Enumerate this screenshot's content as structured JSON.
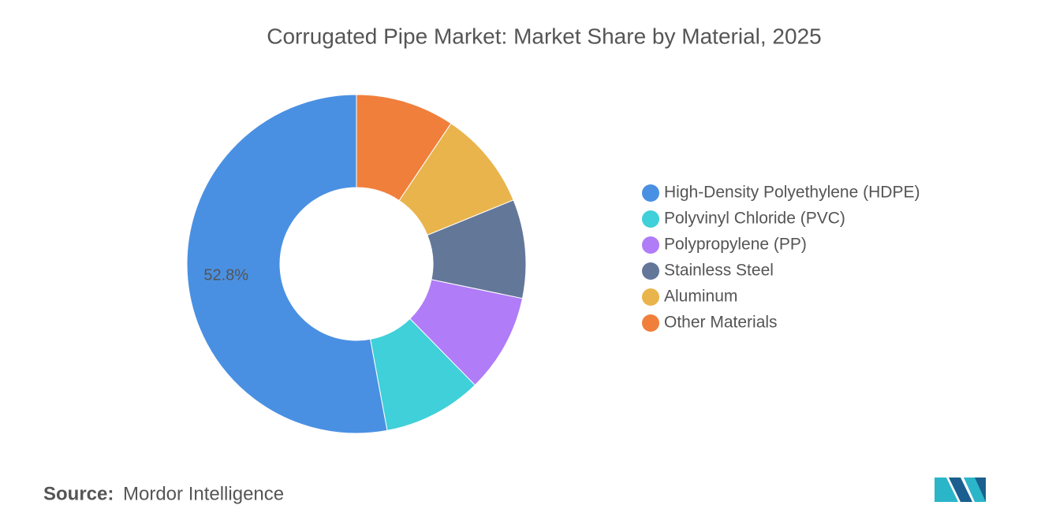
{
  "chart_data": {
    "type": "donut",
    "title": "Corrugated Pipe Market: Market Share by Material, 2025",
    "categories": [
      "High-Density Polyethylene (HDPE)",
      "Polyvinyl Chloride (PVC)",
      "Polypropylene (PP)",
      "Stainless Steel",
      "Aluminum",
      "Other Materials"
    ],
    "values": [
      52.8,
      9.4,
      9.4,
      9.4,
      9.4,
      9.4
    ],
    "value_labels": [
      "52.8%",
      null,
      null,
      null,
      null,
      null
    ],
    "colors": [
      "#4a90e2",
      "#3fd0d9",
      "#b07cf7",
      "#637799",
      "#e9b44c",
      "#f07f3c"
    ],
    "legend": "right"
  },
  "source": {
    "label": "Source:",
    "text": "Mordor Intelligence"
  }
}
